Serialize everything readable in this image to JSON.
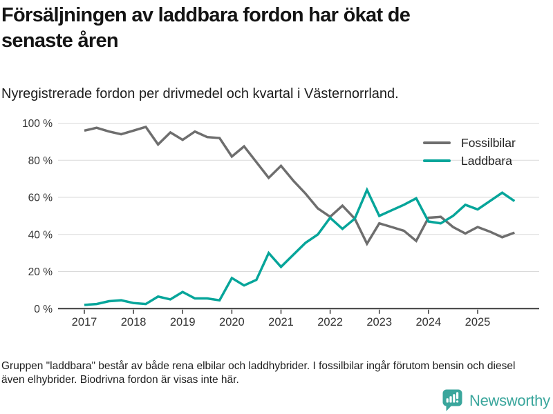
{
  "header": {
    "title": "Försäljningen av laddbara fordon har ökat de senaste åren",
    "subtitle": "Nyregistrerade fordon per drivmedel och kvartal i Västernorrland."
  },
  "footnote": "Gruppen \"laddbara\" består av både rena elbilar och laddhybrider. I fossilbilar ingår förutom bensin och diesel även elhybrider. Biodrivna fordon är visas inte här.",
  "logo": {
    "text": "Newsworthy",
    "icon": "newsworthy-speech-bubble-bar-chart",
    "color": "#3aa69c"
  },
  "colors": {
    "fossil": "#6e6e6e",
    "laddbara": "#06a59a",
    "grid": "#dadada",
    "axis": "#3b3b3b",
    "text": "#333333"
  },
  "chart_data": {
    "type": "line",
    "title": "Försäljningen av laddbara fordon har ökat de senaste åren",
    "subtitle": "Nyregistrerade fordon per drivmedel och kvartal i Västernorrland.",
    "unit": "%",
    "grid": "horizontal",
    "legend_position": "top-right",
    "ylim": [
      0,
      100
    ],
    "yticks": [
      0,
      20,
      40,
      60,
      80,
      100
    ],
    "ytick_labels": [
      "0 %",
      "20 %",
      "40 %",
      "60 %",
      "80 %",
      "100 %"
    ],
    "x_tick_years": [
      "2017",
      "2018",
      "2019",
      "2020",
      "2021",
      "2022",
      "2023",
      "2024",
      "2025"
    ],
    "categories": [
      "2017 Q1",
      "2017 Q2",
      "2017 Q3",
      "2017 Q4",
      "2018 Q1",
      "2018 Q2",
      "2018 Q3",
      "2018 Q4",
      "2019 Q1",
      "2019 Q2",
      "2019 Q3",
      "2019 Q4",
      "2020 Q1",
      "2020 Q2",
      "2020 Q3",
      "2020 Q4",
      "2021 Q1",
      "2021 Q2",
      "2021 Q3",
      "2021 Q4",
      "2022 Q1",
      "2022 Q2",
      "2022 Q3",
      "2022 Q4",
      "2023 Q1",
      "2023 Q2",
      "2023 Q3",
      "2023 Q4",
      "2024 Q1",
      "2024 Q2",
      "2024 Q3",
      "2024 Q4",
      "2025 Q1",
      "2025 Q2",
      "2025 Q3",
      "2025 Q4"
    ],
    "series": [
      {
        "name": "Fossilbilar",
        "color": "#6e6e6e",
        "values": [
          96,
          97.5,
          95.5,
          94,
          96,
          98,
          88.5,
          95,
          91,
          95.5,
          92.5,
          92,
          82,
          87.5,
          79,
          70.5,
          77,
          69,
          62,
          54,
          49.5,
          55.5,
          48.5,
          35,
          46,
          44,
          42,
          36.5,
          49,
          49.5,
          44,
          40.5,
          44,
          41.5,
          38.5,
          41
        ]
      },
      {
        "name": "Laddbara",
        "color": "#06a59a",
        "values": [
          2,
          2.5,
          4,
          4.5,
          3,
          2.5,
          6.5,
          5,
          9,
          5.5,
          5.5,
          4.5,
          16.5,
          12.5,
          15.5,
          30,
          22.5,
          29,
          35.5,
          40,
          49,
          43,
          48.5,
          64,
          50,
          53,
          56,
          59.5,
          47,
          46,
          50,
          56,
          53.5,
          58,
          62.5,
          58
        ]
      }
    ]
  }
}
